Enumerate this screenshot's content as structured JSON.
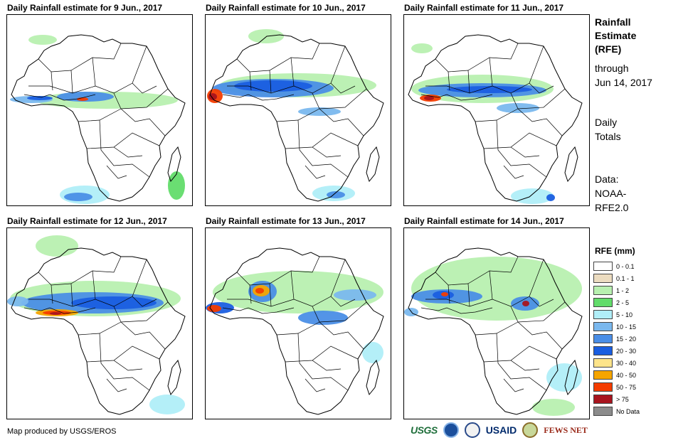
{
  "panels": [
    {
      "title": "Daily Rainfall estimate for 9 Jun., 2017"
    },
    {
      "title": "Daily Rainfall estimate for 10 Jun., 2017"
    },
    {
      "title": "Daily Rainfall estimate for 11 Jun., 2017"
    },
    {
      "title": "Daily Rainfall estimate for 12 Jun., 2017"
    },
    {
      "title": "Daily Rainfall estimate for 13 Jun., 2017"
    },
    {
      "title": "Daily Rainfall estimate for 14 Jun., 2017"
    }
  ],
  "sidebar": {
    "heading_1": "Rainfall",
    "heading_2": "Estimate",
    "heading_3": "(RFE)",
    "through_1": "through",
    "through_2": "Jun 14, 2017",
    "daily_1": "Daily",
    "daily_2": "Totals",
    "data_1": "Data:",
    "data_2": "NOAA-",
    "data_3": "RFE2.0"
  },
  "legend": {
    "title": "RFE (mm)",
    "items": [
      {
        "label": "0 - 0.1",
        "color": "#ffffff"
      },
      {
        "label": "0.1 - 1",
        "color": "#ecdcc0"
      },
      {
        "label": "1 - 2",
        "color": "#b8f0b0"
      },
      {
        "label": "2 - 5",
        "color": "#62dc6a"
      },
      {
        "label": "5 - 10",
        "color": "#b0eef8"
      },
      {
        "label": "10 - 15",
        "color": "#7ab8ee"
      },
      {
        "label": "15 - 20",
        "color": "#4a8ee6"
      },
      {
        "label": "20 - 30",
        "color": "#1a5ee0"
      },
      {
        "label": "30 - 40",
        "color": "#fde48a"
      },
      {
        "label": "40 - 50",
        "color": "#f6a500"
      },
      {
        "label": "50 - 75",
        "color": "#f43c00"
      },
      {
        "label": "> 75",
        "color": "#a8141e"
      },
      {
        "label": "No Data",
        "color": "#8c8c8c"
      }
    ]
  },
  "credit": "Map produced by USGS/EROS",
  "logos": {
    "usgs": "USGS",
    "usaid": "USAID",
    "fews": "FEWS NET"
  }
}
